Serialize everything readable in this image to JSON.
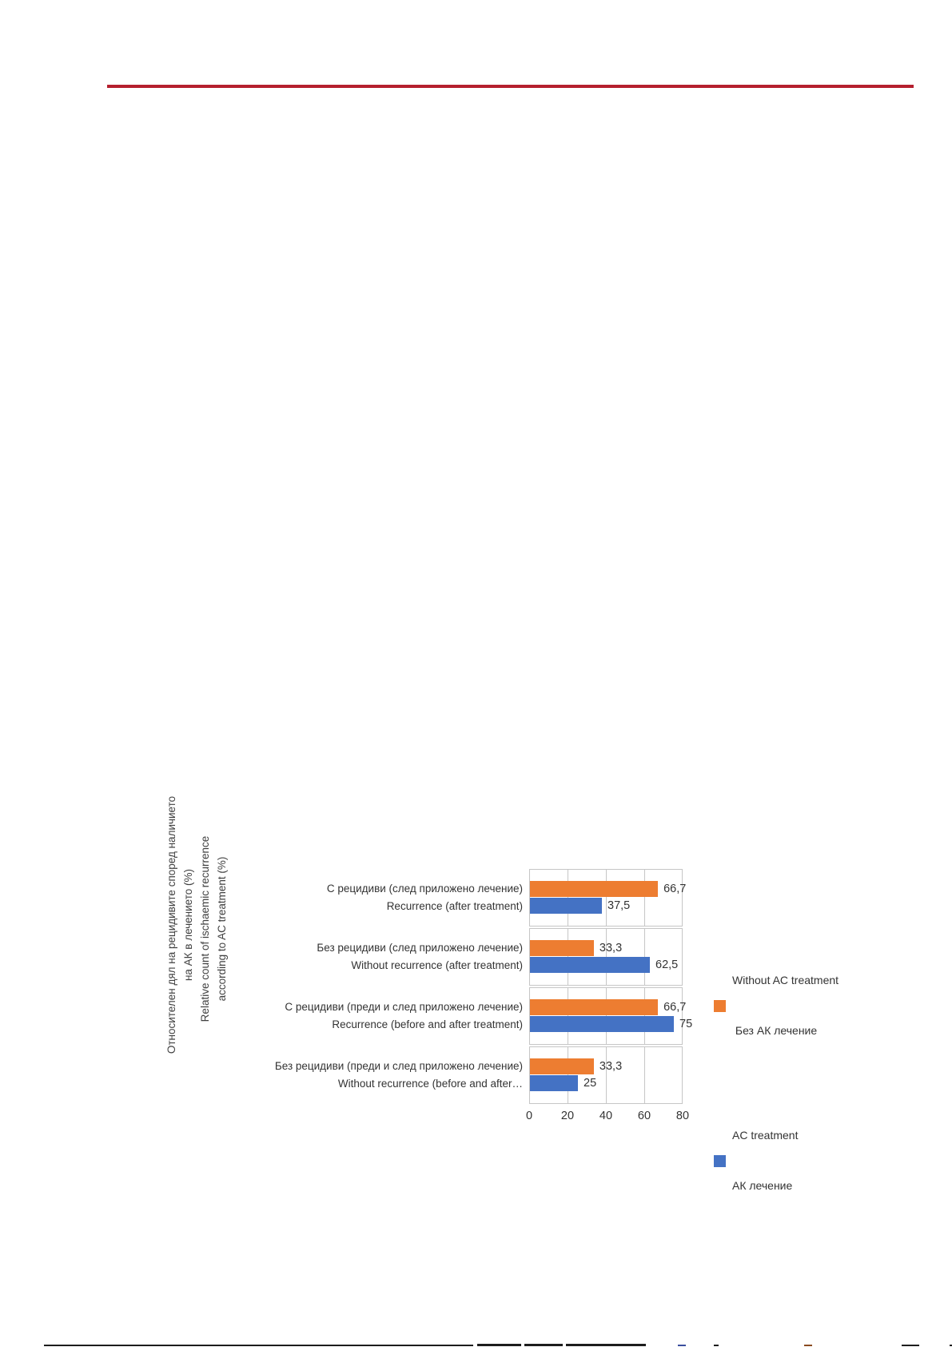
{
  "header": {
    "rule_color": "#b51f2e"
  },
  "chart_data": {
    "type": "bar",
    "orientation": "horizontal",
    "title": "",
    "xlabel": "",
    "ylabel_bg": "Относителен дял на рецидивите според наличието на АК в лечението (%)",
    "ylabel_en": "Relative count of ischaemic recurrence according to AC treatment (%)",
    "y_axis_title_bg_lines": [
      "Относителен дял на рецидивите според наличието",
      "на АК в лечението (%)"
    ],
    "y_axis_title_en_lines": [
      "Relative count of ischaemic recurrence",
      "according to AC treatment  (%)"
    ],
    "categories": [
      {
        "label_bg": "С рецидиви (след  приложено лечение)",
        "label_en": "Recurrence (after treatment)"
      },
      {
        "label_bg": "Без рецидиви (след  приложено лечение)",
        "label_en": "Without recurrence (after  treatment)"
      },
      {
        "label_bg": "С рецидиви (преди и  след приложено  лечение)",
        "label_en": "Recurrence (before and  after treatment)"
      },
      {
        "label_bg": "Без рецидиви (преди и  след приложено  лечение)",
        "label_en": "Without recurrence  (before and after…"
      }
    ],
    "series": [
      {
        "name_en": "Without AC treatment",
        "name_bg": " Без АК лечение",
        "color": "#ED7D31",
        "values": [
          66.7,
          33.3,
          66.7,
          33.3
        ],
        "value_labels": [
          "66,7",
          "33,3",
          "66,7",
          "33,3"
        ]
      },
      {
        "name_en": "AC treatment",
        "name_bg": "АК лечение",
        "color": "#4472C4",
        "values": [
          37.5,
          62.5,
          75,
          25
        ],
        "value_labels": [
          "37,5",
          "62,5",
          "75",
          "25"
        ]
      }
    ],
    "x_ticks": [
      "0",
      "20",
      "40",
      "60",
      "80"
    ],
    "xlim": [
      0,
      80
    ],
    "grid": true,
    "legend_position": "right"
  }
}
